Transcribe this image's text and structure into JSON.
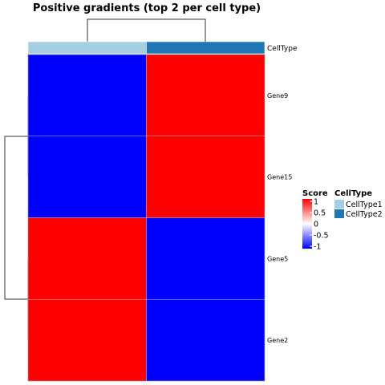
{
  "chart_data": {
    "type": "heatmap",
    "title": "Positive gradients (top 2 per cell type)",
    "rows": [
      "Gene9",
      "Gene15",
      "Gene5",
      "Gene2"
    ],
    "columns": [
      "CellType1",
      "CellType2"
    ],
    "values": [
      [
        -1,
        1
      ],
      [
        -1,
        1
      ],
      [
        1,
        -1
      ],
      [
        1,
        -1
      ]
    ],
    "column_annotation": {
      "name": "CellType",
      "values": [
        "CellType1",
        "CellType2"
      ]
    },
    "color_scale": {
      "name": "Score",
      "min": -1,
      "max": 1,
      "low": "#0000ff",
      "mid": "#ffffff",
      "high": "#ff0000",
      "ticks": [
        "1",
        "0.5",
        "0",
        "-0.5",
        "-1"
      ]
    },
    "annotation_legend": {
      "name": "CellType",
      "entries": [
        {
          "label": "CellType1",
          "color": "#a6cee3"
        },
        {
          "label": "CellType2",
          "color": "#1f78b4"
        }
      ]
    },
    "row_dendrogram": true,
    "column_dendrogram": true
  }
}
